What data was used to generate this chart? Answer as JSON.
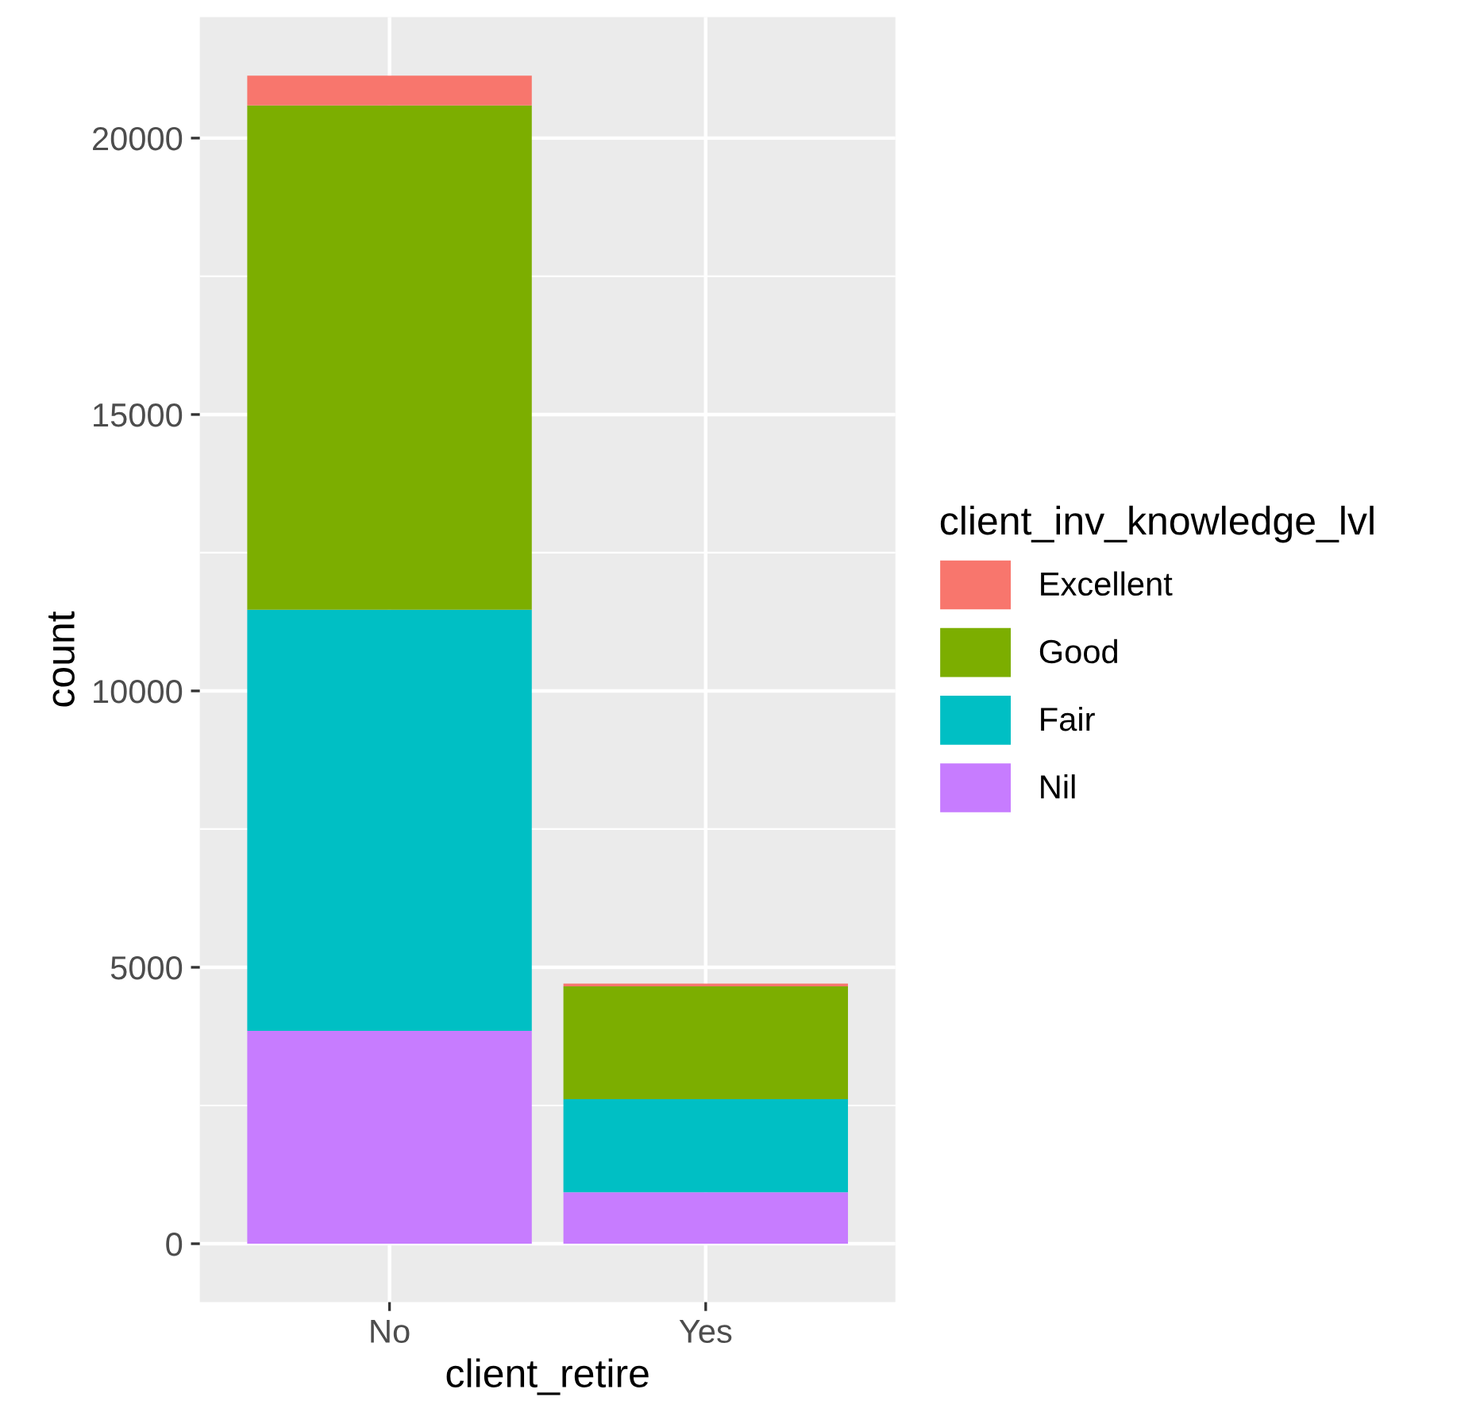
{
  "chart_data": {
    "type": "bar",
    "stacked": true,
    "xlabel": "client_retire",
    "ylabel": "count",
    "legend_title": "client_inv_knowledge_lvl",
    "legend": "right",
    "grid": true,
    "categories": [
      "No",
      "Yes"
    ],
    "series": [
      {
        "name": "Nil",
        "color": "#c77cff",
        "values": [
          3850,
          930
        ]
      },
      {
        "name": "Fair",
        "color": "#00bfc4",
        "values": [
          7620,
          1685
        ]
      },
      {
        "name": "Good",
        "color": "#7cae00",
        "values": [
          9120,
          2040
        ]
      },
      {
        "name": "Excellent",
        "color": "#f8766d",
        "values": [
          540,
          50
        ]
      }
    ],
    "ylim": [
      -1057,
      22190
    ],
    "yticks": [
      0,
      5000,
      10000,
      15000,
      20000
    ]
  }
}
